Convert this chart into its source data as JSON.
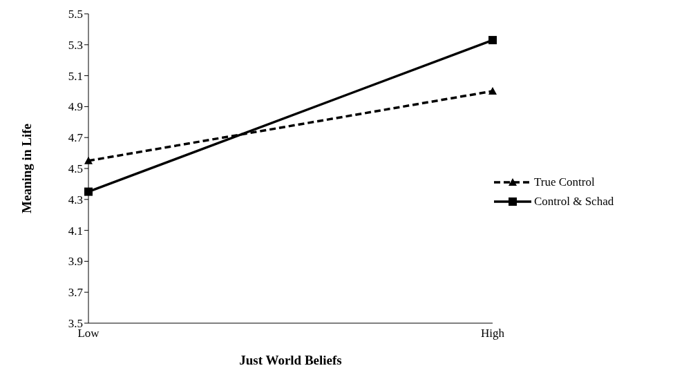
{
  "chart_data": {
    "type": "line",
    "xlabel": "Just World Beliefs",
    "ylabel": "Meaning in Life",
    "categories": [
      "Low",
      "High"
    ],
    "series": [
      {
        "name": "True Control",
        "color": "#000000",
        "values": [
          4.55,
          5.0
        ],
        "marker": "triangle",
        "line_style": "dashed"
      },
      {
        "name": "Control & Schad",
        "color": "#000000",
        "values": [
          4.35,
          5.33
        ],
        "marker": "square",
        "line_style": "solid"
      }
    ],
    "ylim": [
      3.5,
      5.5
    ],
    "yticks": [
      3.5,
      3.7,
      3.9,
      4.1,
      4.3,
      4.5,
      4.7,
      4.9,
      5.1,
      5.3,
      5.5
    ],
    "grid": false,
    "legend": "right"
  }
}
